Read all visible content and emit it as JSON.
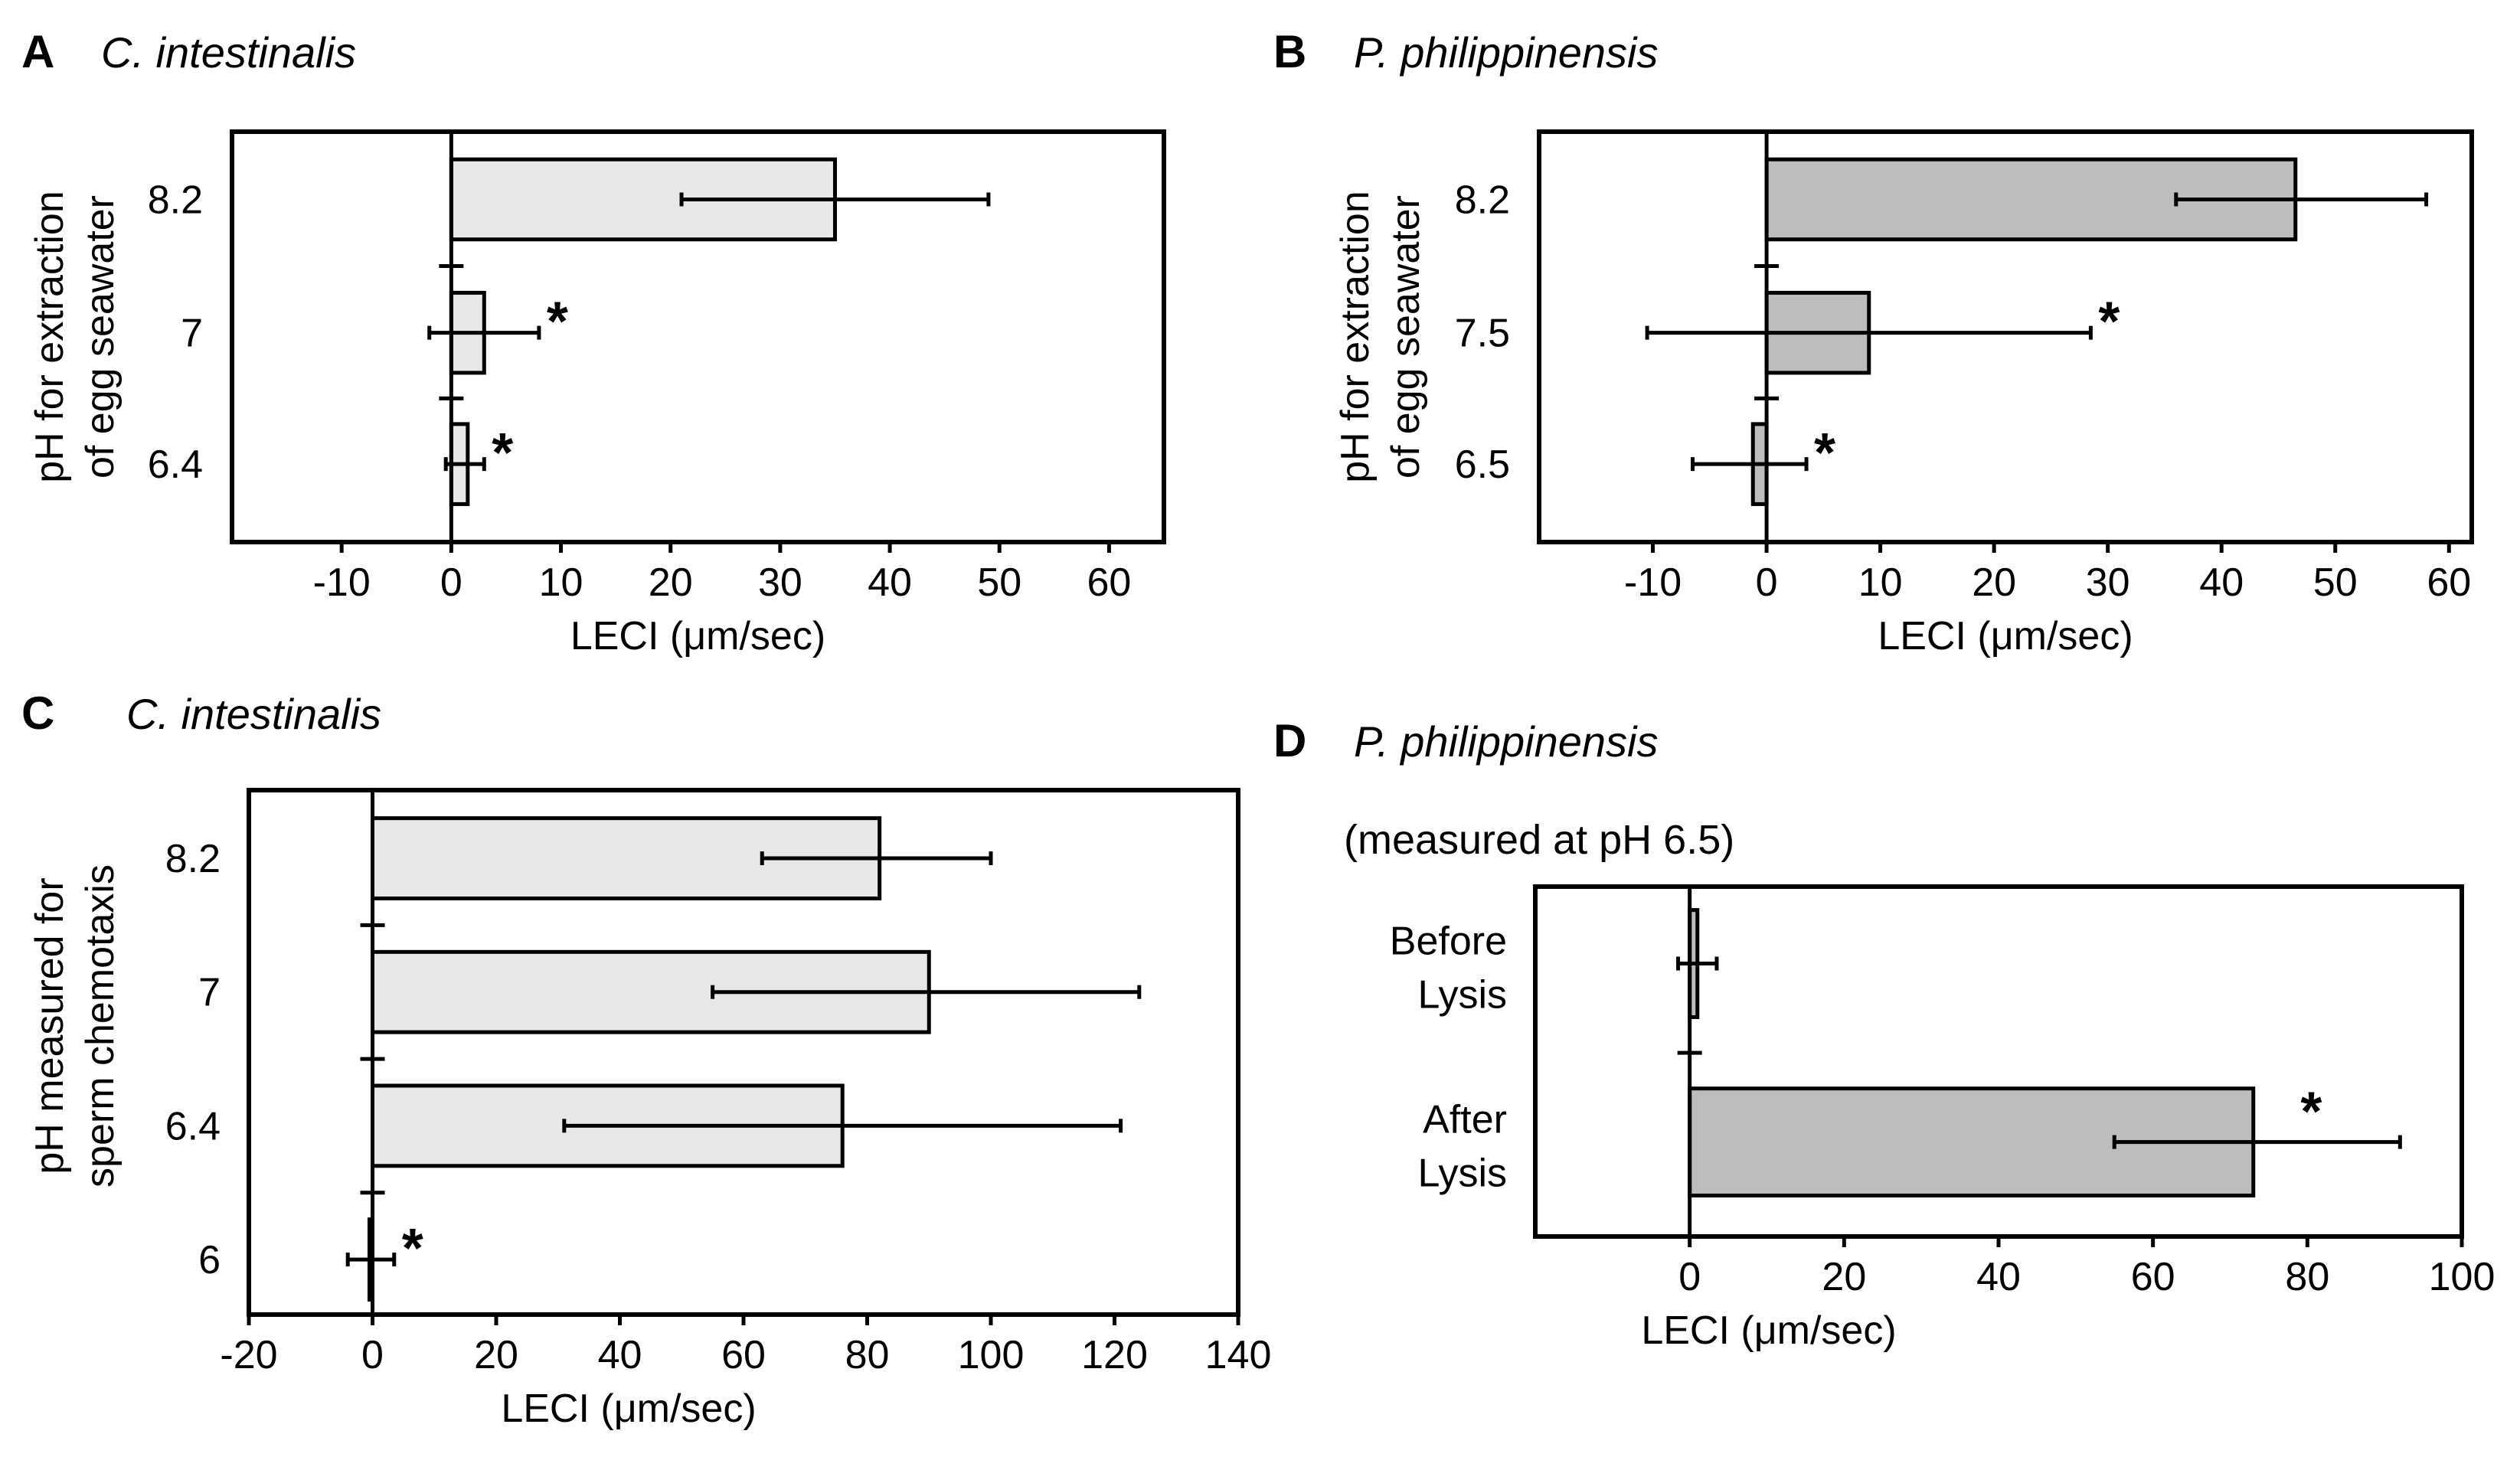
{
  "chart_data": [
    {
      "id": "A",
      "type": "bar",
      "orientation": "horizontal",
      "panel_label": "A",
      "title": "C. intestinalis",
      "subtitle": "",
      "xlabel": "LECI (μm/sec)",
      "ylabel": [
        "pH for extraction",
        "of egg seawater"
      ],
      "xlim": [
        -20,
        65
      ],
      "xticks": [
        -10,
        0,
        10,
        20,
        30,
        40,
        50,
        60
      ],
      "categories": [
        "8.2",
        "7",
        "6.4"
      ],
      "values": [
        35,
        3,
        1.5
      ],
      "error": [
        [
          21,
          49
        ],
        [
          -2,
          8
        ],
        [
          -0.5,
          3
        ]
      ],
      "significant": [
        false,
        true,
        true
      ],
      "bar_color": "#e8e8e8",
      "grid": false
    },
    {
      "id": "B",
      "type": "bar",
      "orientation": "horizontal",
      "panel_label": "B",
      "title": "P. philippinensis",
      "subtitle": "",
      "xlabel": "LECI (μm/sec)",
      "ylabel": [
        "pH for extraction",
        "of egg seawater"
      ],
      "xlim": [
        -20,
        62
      ],
      "xticks": [
        -10,
        0,
        10,
        20,
        30,
        40,
        50,
        60
      ],
      "categories": [
        "8.2",
        "7.5",
        "6.5"
      ],
      "values": [
        46.5,
        9,
        -1.2
      ],
      "error": [
        [
          36,
          58
        ],
        [
          -10.5,
          28.5
        ],
        [
          -6.5,
          3.5
        ]
      ],
      "significant": [
        false,
        true,
        true
      ],
      "bar_color": "#bdbdbd",
      "grid": false
    },
    {
      "id": "C",
      "type": "bar",
      "orientation": "horizontal",
      "panel_label": "C",
      "title": "C. intestinalis",
      "subtitle": "",
      "xlabel": "LECI (μm/sec)",
      "ylabel": [
        "pH measured for",
        "sperm chemotaxis"
      ],
      "xlim": [
        -20,
        140
      ],
      "xticks": [
        -20,
        0,
        20,
        40,
        60,
        80,
        100,
        120,
        140
      ],
      "categories": [
        "8.2",
        "7",
        "6.4",
        "6"
      ],
      "values": [
        82,
        90,
        76,
        -0.5
      ],
      "error": [
        [
          63,
          100
        ],
        [
          55,
          124
        ],
        [
          31,
          121
        ],
        [
          -4,
          3.5
        ]
      ],
      "significant": [
        false,
        false,
        false,
        true
      ],
      "bar_color": "#e8e8e8",
      "grid": false
    },
    {
      "id": "D",
      "type": "bar",
      "orientation": "horizontal",
      "panel_label": "D",
      "title": "P. philippinensis",
      "subtitle": "(measured at pH 6.5)",
      "xlabel": "LECI (μm/sec)",
      "ylabel": [],
      "xlim": [
        -20,
        100
      ],
      "xticks": [
        0,
        20,
        40,
        60,
        80,
        100
      ],
      "categories": [
        [
          "Before",
          "Lysis"
        ],
        [
          "After",
          "Lysis"
        ]
      ],
      "values": [
        1,
        73
      ],
      "error": [
        [
          -1.5,
          3.5
        ],
        [
          55,
          92
        ]
      ],
      "significant": [
        false,
        true
      ],
      "bar_color": "#bdbdbd",
      "grid": false
    }
  ]
}
